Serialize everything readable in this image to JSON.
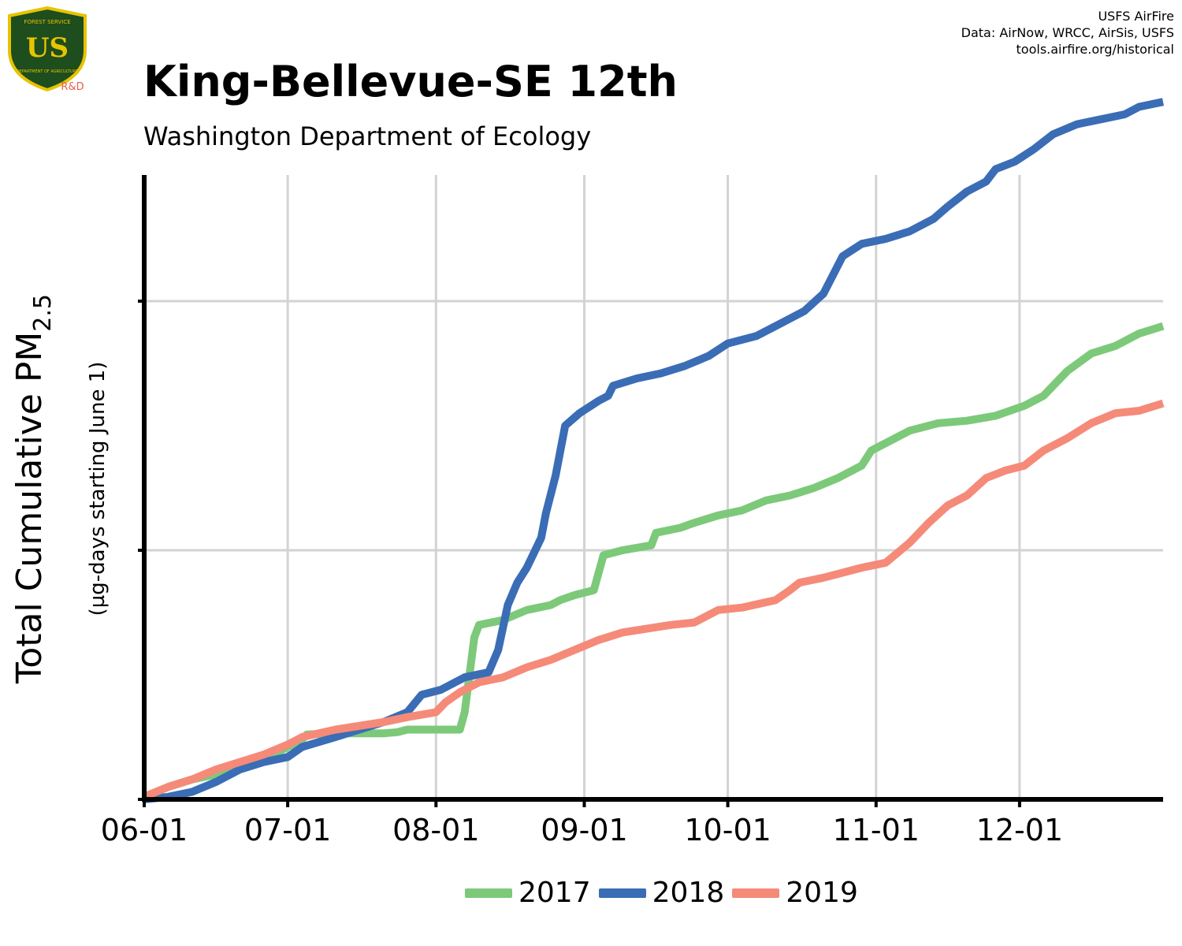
{
  "logo": {
    "top_text": "FOREST SERVICE",
    "letters": "US",
    "bottom_text": "DEPARTMENT OF AGRICULTURE",
    "badge": "R&D",
    "colors": {
      "shield": "#1e4d1e",
      "trim": "#e6c400",
      "badge": "#e8604c"
    }
  },
  "credits": {
    "line1": "USFS AirFire",
    "line2": "Data: AirNow, WRCC, AirSis, USFS",
    "line3": "tools.airfire.org/historical"
  },
  "chart_data": {
    "type": "line",
    "title": "King-Bellevue-SE 12th",
    "subtitle": "Washington Department of Ecology",
    "ylabel_main": "Total Cumulative PM",
    "ylabel_sub": "2.5",
    "ylabel_units": "(µg-days starting June 1)",
    "x_tick_labels": [
      "06-01",
      "07-01",
      "08-01",
      "09-01",
      "10-01",
      "11-01",
      "12-01"
    ],
    "x_tick_days": [
      0,
      30,
      61,
      92,
      122,
      153,
      183
    ],
    "xlim": [
      0,
      213
    ],
    "ylim": [
      0,
      2.75
    ],
    "y_ticks": [
      0,
      1,
      2
    ],
    "y_tick_labels_shown": false,
    "grid": true,
    "series": [
      {
        "name": "2017",
        "color": "#7dc97a",
        "points": [
          [
            0,
            0.01
          ],
          [
            5,
            0.05
          ],
          [
            10,
            0.08
          ],
          [
            15,
            0.1
          ],
          [
            20,
            0.13
          ],
          [
            25,
            0.16
          ],
          [
            30,
            0.21
          ],
          [
            33,
            0.24
          ],
          [
            34,
            0.26
          ],
          [
            40,
            0.265
          ],
          [
            50,
            0.265
          ],
          [
            53,
            0.27
          ],
          [
            55,
            0.28
          ],
          [
            60,
            0.28
          ],
          [
            66,
            0.28
          ],
          [
            67,
            0.35
          ],
          [
            69,
            0.65
          ],
          [
            70,
            0.7
          ],
          [
            75,
            0.72
          ],
          [
            80,
            0.76
          ],
          [
            85,
            0.78
          ],
          [
            87,
            0.8
          ],
          [
            90,
            0.82
          ],
          [
            94,
            0.84
          ],
          [
            96,
            0.98
          ],
          [
            100,
            1.0
          ],
          [
            106,
            1.02
          ],
          [
            107,
            1.07
          ],
          [
            112,
            1.09
          ],
          [
            115,
            1.11
          ],
          [
            120,
            1.14
          ],
          [
            125,
            1.16
          ],
          [
            130,
            1.2
          ],
          [
            135,
            1.22
          ],
          [
            140,
            1.25
          ],
          [
            145,
            1.29
          ],
          [
            150,
            1.34
          ],
          [
            152,
            1.4
          ],
          [
            156,
            1.44
          ],
          [
            160,
            1.48
          ],
          [
            166,
            1.51
          ],
          [
            172,
            1.52
          ],
          [
            178,
            1.54
          ],
          [
            184,
            1.58
          ],
          [
            188,
            1.62
          ],
          [
            193,
            1.72
          ],
          [
            198,
            1.79
          ],
          [
            203,
            1.82
          ],
          [
            208,
            1.87
          ],
          [
            213,
            1.9
          ]
        ]
      },
      {
        "name": "2018",
        "color": "#3a6db5",
        "points": [
          [
            0,
            0
          ],
          [
            5,
            0.01
          ],
          [
            10,
            0.03
          ],
          [
            15,
            0.07
          ],
          [
            20,
            0.12
          ],
          [
            25,
            0.15
          ],
          [
            30,
            0.17
          ],
          [
            33,
            0.21
          ],
          [
            40,
            0.25
          ],
          [
            50,
            0.31
          ],
          [
            55,
            0.35
          ],
          [
            58,
            0.42
          ],
          [
            62,
            0.44
          ],
          [
            67,
            0.49
          ],
          [
            72,
            0.51
          ],
          [
            74,
            0.6
          ],
          [
            76,
            0.78
          ],
          [
            78,
            0.87
          ],
          [
            80,
            0.93
          ],
          [
            83,
            1.05
          ],
          [
            84,
            1.15
          ],
          [
            86,
            1.3
          ],
          [
            88,
            1.5
          ],
          [
            91,
            1.55
          ],
          [
            95,
            1.6
          ],
          [
            97,
            1.62
          ],
          [
            98,
            1.66
          ],
          [
            103,
            1.69
          ],
          [
            108,
            1.71
          ],
          [
            113,
            1.74
          ],
          [
            118,
            1.78
          ],
          [
            122,
            1.83
          ],
          [
            128,
            1.86
          ],
          [
            133,
            1.91
          ],
          [
            138,
            1.96
          ],
          [
            142,
            2.03
          ],
          [
            146,
            2.18
          ],
          [
            150,
            2.23
          ],
          [
            155,
            2.25
          ],
          [
            160,
            2.28
          ],
          [
            165,
            2.33
          ],
          [
            168,
            2.38
          ],
          [
            172,
            2.44
          ],
          [
            176,
            2.48
          ],
          [
            178,
            2.53
          ],
          [
            182,
            2.56
          ],
          [
            186,
            2.61
          ],
          [
            190,
            2.67
          ],
          [
            195,
            2.71
          ],
          [
            200,
            2.73
          ],
          [
            205,
            2.75
          ],
          [
            208,
            2.78
          ],
          [
            213,
            2.8
          ]
        ]
      },
      {
        "name": "2019",
        "color": "#f58a79",
        "points": [
          [
            0,
            0.01
          ],
          [
            5,
            0.05
          ],
          [
            10,
            0.08
          ],
          [
            15,
            0.12
          ],
          [
            20,
            0.15
          ],
          [
            25,
            0.18
          ],
          [
            30,
            0.22
          ],
          [
            33,
            0.25
          ],
          [
            40,
            0.28
          ],
          [
            50,
            0.31
          ],
          [
            55,
            0.33
          ],
          [
            61,
            0.35
          ],
          [
            63,
            0.39
          ],
          [
            66,
            0.43
          ],
          [
            70,
            0.47
          ],
          [
            75,
            0.49
          ],
          [
            80,
            0.53
          ],
          [
            85,
            0.56
          ],
          [
            90,
            0.6
          ],
          [
            95,
            0.64
          ],
          [
            100,
            0.67
          ],
          [
            110,
            0.7
          ],
          [
            115,
            0.71
          ],
          [
            120,
            0.76
          ],
          [
            125,
            0.77
          ],
          [
            132,
            0.8
          ],
          [
            135,
            0.84
          ],
          [
            137,
            0.87
          ],
          [
            142,
            0.89
          ],
          [
            150,
            0.93
          ],
          [
            155,
            0.95
          ],
          [
            160,
            1.03
          ],
          [
            164,
            1.11
          ],
          [
            168,
            1.18
          ],
          [
            172,
            1.22
          ],
          [
            176,
            1.29
          ],
          [
            180,
            1.32
          ],
          [
            184,
            1.34
          ],
          [
            188,
            1.4
          ],
          [
            193,
            1.45
          ],
          [
            198,
            1.51
          ],
          [
            203,
            1.55
          ],
          [
            208,
            1.56
          ],
          [
            213,
            1.59
          ]
        ]
      }
    ]
  }
}
